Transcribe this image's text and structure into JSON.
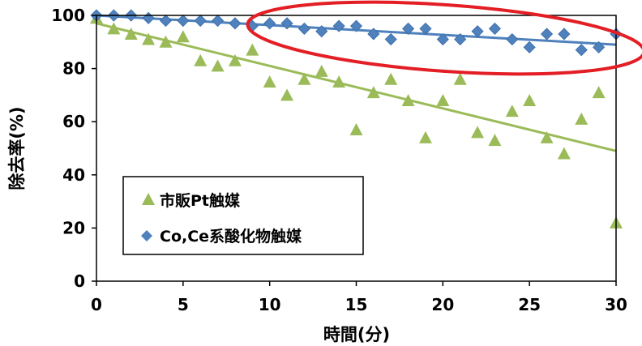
{
  "chart_data": {
    "type": "scatter",
    "xlabel": "時間(分)",
    "ylabel": "除去率(%)",
    "xlim": [
      0,
      30
    ],
    "ylim": [
      0,
      100
    ],
    "xticks": [
      0,
      5,
      10,
      15,
      20,
      25,
      30
    ],
    "yticks": [
      0,
      20,
      40,
      60,
      80,
      100
    ],
    "grid": false,
    "legend_position": "bottom-left",
    "series": [
      {
        "name": "市販Pt触媒",
        "marker": "triangle",
        "color": "#9BBB59",
        "x": [
          0,
          1,
          2,
          3,
          4,
          5,
          6,
          7,
          8,
          9,
          10,
          11,
          12,
          13,
          14,
          15,
          16,
          17,
          18,
          19,
          20,
          21,
          22,
          23,
          24,
          25,
          26,
          27,
          28,
          29,
          30
        ],
        "values": [
          99,
          95,
          93,
          91,
          90,
          92,
          83,
          81,
          83,
          87,
          75,
          70,
          76,
          79,
          75,
          57,
          71,
          76,
          68,
          54,
          68,
          76,
          56,
          53,
          64,
          68,
          54,
          48,
          61,
          71,
          22
        ],
        "trendline": [
          97,
          49
        ]
      },
      {
        "name": "Co,Ce系酸化物触媒",
        "marker": "diamond",
        "color": "#4F81BD",
        "x": [
          0,
          1,
          2,
          3,
          4,
          5,
          6,
          7,
          8,
          9,
          10,
          11,
          12,
          13,
          14,
          15,
          16,
          17,
          18,
          19,
          20,
          21,
          22,
          23,
          24,
          25,
          26,
          27,
          28,
          29,
          30
        ],
        "values": [
          100,
          100,
          100,
          99,
          98,
          98,
          98,
          98,
          97,
          96,
          97,
          97,
          95,
          94,
          96,
          96,
          93,
          91,
          95,
          95,
          91,
          91,
          94,
          95,
          91,
          88,
          93,
          93,
          87,
          88,
          93
        ],
        "trendline": [
          100,
          89
        ]
      }
    ],
    "annotation": {
      "shape": "ellipse",
      "color": "#E31E24",
      "highlights": "Co,Ce系酸化物触媒"
    }
  }
}
